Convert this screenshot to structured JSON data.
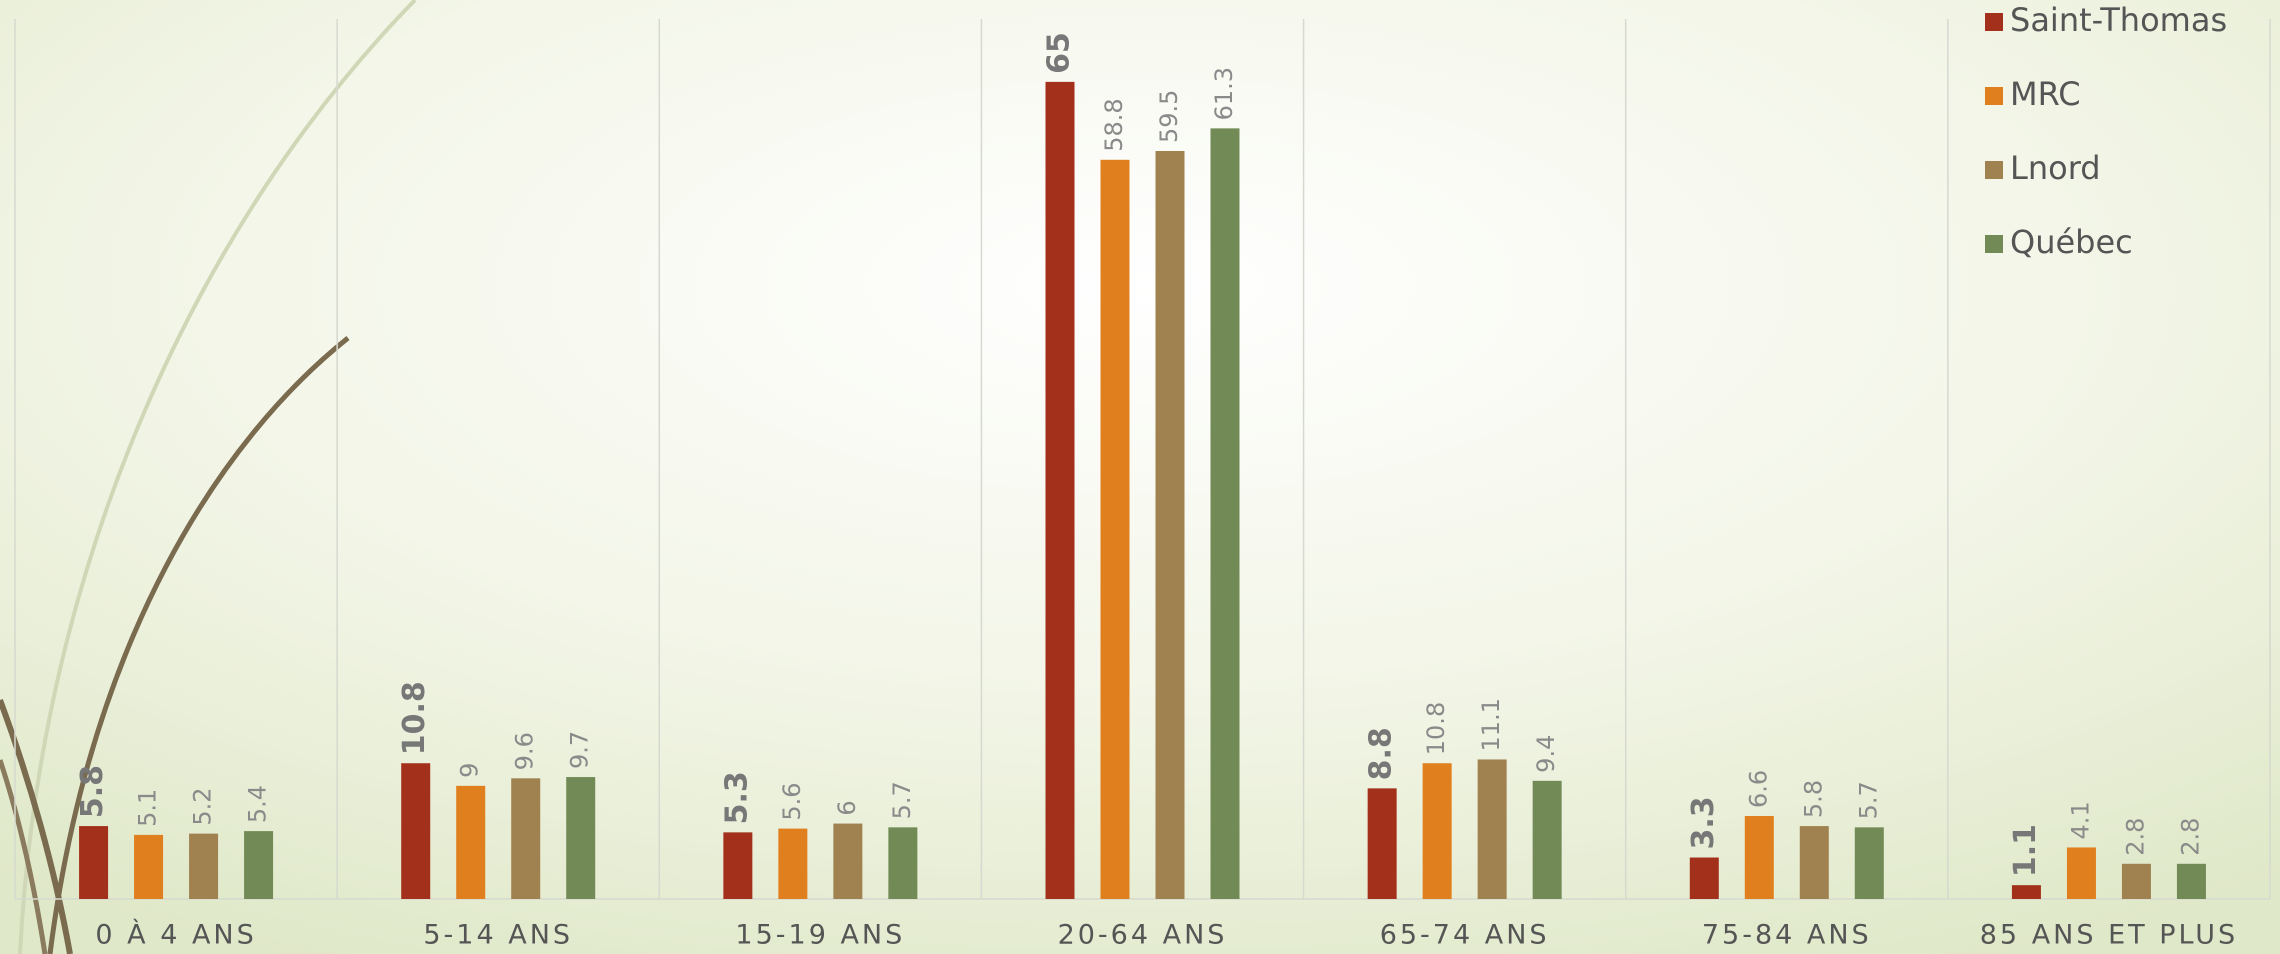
{
  "chart_data": {
    "type": "bar",
    "categories": [
      "0 À 4 ANS",
      "5-14 ANS",
      "15-19 ANS",
      "20-64 ANS",
      "65-74 ANS",
      "75-84 ANS",
      "85 ANS ET PLUS"
    ],
    "series": [
      {
        "name": "Saint-Thomas",
        "color": "#a2301a",
        "values": [
          5.8,
          10.8,
          5.3,
          65,
          8.8,
          3.3,
          1.1
        ]
      },
      {
        "name": "MRC",
        "color": "#e07f1d",
        "values": [
          5.1,
          9,
          5.6,
          58.8,
          10.8,
          6.6,
          4.1
        ]
      },
      {
        "name": "Lnord",
        "color": "#a08150",
        "values": [
          5.2,
          9.6,
          6,
          59.5,
          11.1,
          5.8,
          2.8
        ]
      },
      {
        "name": "Québec",
        "color": "#728a55",
        "values": [
          5.4,
          9.7,
          5.7,
          61.3,
          9.4,
          5.7,
          2.8
        ]
      }
    ],
    "ylim": [
      0,
      70
    ],
    "legend": "top-right"
  }
}
